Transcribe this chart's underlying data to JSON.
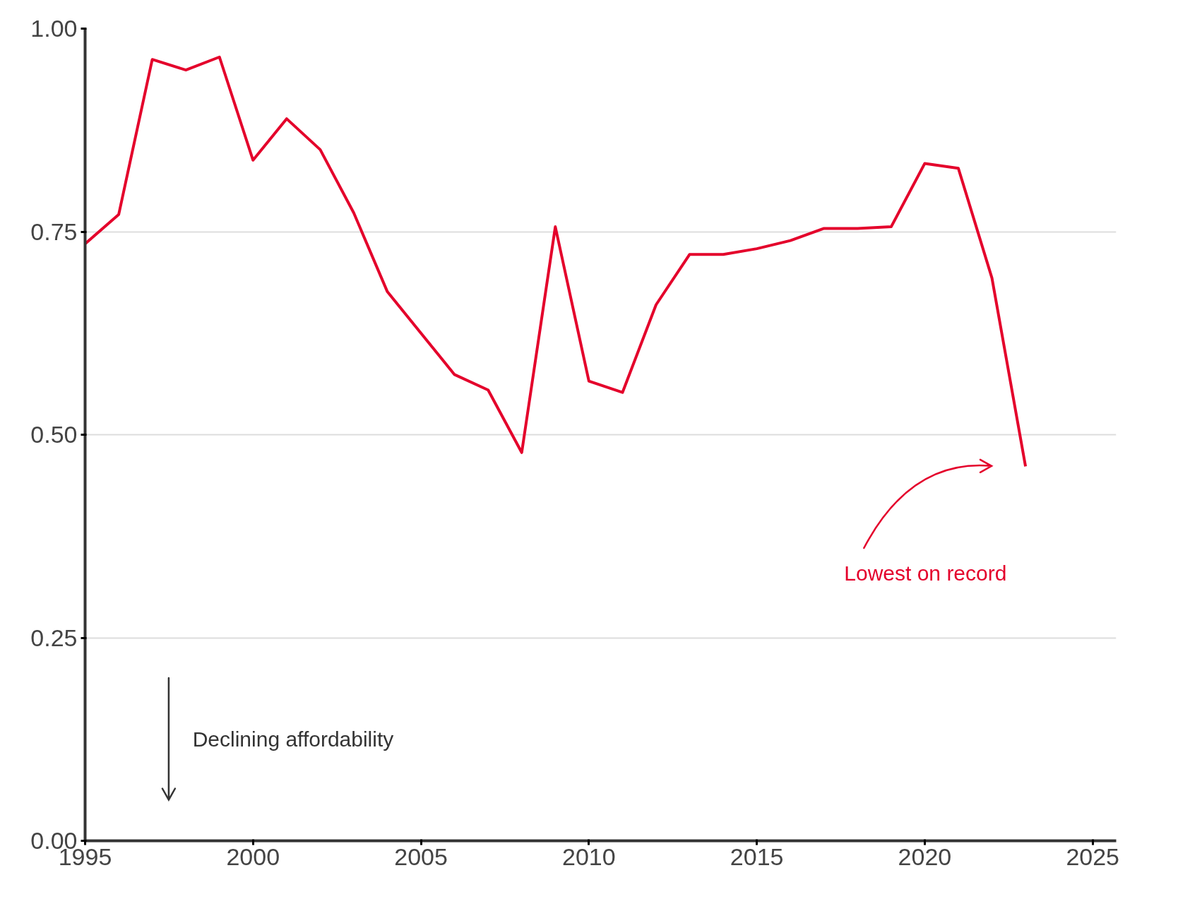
{
  "chart_data": {
    "type": "line",
    "x": [
      1995,
      1996,
      1997,
      1998,
      1999,
      2000,
      2001,
      2002,
      2003,
      2004,
      2005,
      2006,
      2007,
      2008,
      2009,
      2010,
      2011,
      2012,
      2013,
      2014,
      2015,
      2016,
      2017,
      2018,
      2019,
      2020,
      2021,
      2022,
      2023
    ],
    "series": [
      {
        "color": "#e4002b",
        "values": [
          0.735,
          0.771,
          0.962,
          0.949,
          0.965,
          0.838,
          0.889,
          0.851,
          0.773,
          0.676,
          0.625,
          0.574,
          0.555,
          0.478,
          0.756,
          0.566,
          0.552,
          0.66,
          0.722,
          0.722,
          0.729,
          0.739,
          0.754,
          0.754,
          0.756,
          0.834,
          0.828,
          0.693,
          0.461
        ]
      }
    ],
    "xlim": [
      1995,
      2025.7
    ],
    "ylim": [
      0,
      1
    ],
    "xticks": [
      1995,
      2000,
      2005,
      2010,
      2015,
      2020,
      2025
    ],
    "yticks": [
      {
        "value": 0,
        "label": "0.00"
      },
      {
        "value": 0.25,
        "label": "0.25"
      },
      {
        "value": 0.5,
        "label": "0.50"
      },
      {
        "value": 0.75,
        "label": "0.75"
      },
      {
        "value": 1,
        "label": "1.00"
      }
    ],
    "grid": "y",
    "marker": "none",
    "line_style": "solid",
    "annotations": [
      "Declining affordability",
      "Lowest on record"
    ]
  }
}
